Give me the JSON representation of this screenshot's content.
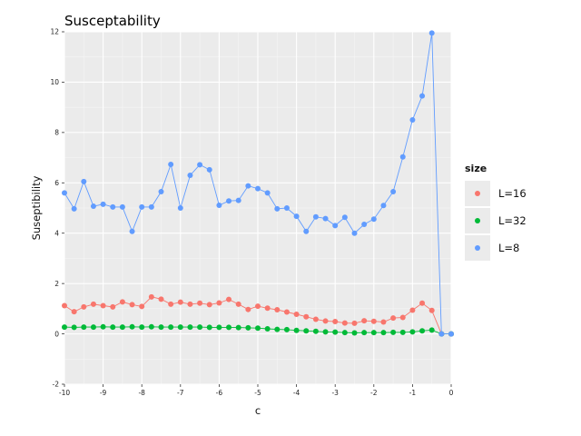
{
  "chart_data": {
    "type": "line",
    "title": "Susceptability",
    "xlabel": "c",
    "ylabel": "Suseptibility",
    "xlim": [
      -10,
      0
    ],
    "ylim": [
      -2,
      12
    ],
    "x_ticks": [
      -10,
      -9,
      -8,
      -7,
      -6,
      -5,
      -4,
      -3,
      -2,
      -1,
      0
    ],
    "y_ticks": [
      -2,
      0,
      2,
      4,
      6,
      8,
      10,
      12
    ],
    "grid": true,
    "legend": {
      "title": "size",
      "placement": "right"
    },
    "series": [
      {
        "name": "L=16",
        "color": "#F8766D",
        "x": [
          -10,
          -9.75,
          -9.5,
          -9.25,
          -9,
          -8.75,
          -8.5,
          -8.25,
          -8,
          -7.75,
          -7.5,
          -7.25,
          -7,
          -6.75,
          -6.5,
          -6.25,
          -6,
          -5.75,
          -5.5,
          -5.25,
          -5,
          -4.75,
          -4.5,
          -4.25,
          -4,
          -3.75,
          -3.5,
          -3.25,
          -3,
          -2.75,
          -2.5,
          -2.25,
          -2,
          -1.75,
          -1.5,
          -1.25,
          -1,
          -0.75,
          -0.5,
          -0.25,
          0
        ],
        "y": [
          1.12,
          0.88,
          1.07,
          1.18,
          1.12,
          1.07,
          1.27,
          1.16,
          1.09,
          1.47,
          1.38,
          1.18,
          1.26,
          1.18,
          1.22,
          1.16,
          1.23,
          1.37,
          1.18,
          0.97,
          1.1,
          1.02,
          0.96,
          0.87,
          0.78,
          0.68,
          0.58,
          0.51,
          0.49,
          0.43,
          0.42,
          0.52,
          0.5,
          0.47,
          0.63,
          0.65,
          0.94,
          1.22,
          0.93,
          0.0,
          0.0
        ]
      },
      {
        "name": "L=32",
        "color": "#00BA38",
        "x": [
          -10,
          -9.75,
          -9.5,
          -9.25,
          -9,
          -8.75,
          -8.5,
          -8.25,
          -8,
          -7.75,
          -7.5,
          -7.25,
          -7,
          -6.75,
          -6.5,
          -6.25,
          -6,
          -5.75,
          -5.5,
          -5.25,
          -5,
          -4.75,
          -4.5,
          -4.25,
          -4,
          -3.75,
          -3.5,
          -3.25,
          -3,
          -2.75,
          -2.5,
          -2.25,
          -2,
          -1.75,
          -1.5,
          -1.25,
          -1,
          -0.75,
          -0.5,
          -0.25,
          0
        ],
        "y": [
          0.27,
          0.26,
          0.27,
          0.27,
          0.28,
          0.27,
          0.27,
          0.28,
          0.27,
          0.28,
          0.27,
          0.27,
          0.27,
          0.27,
          0.27,
          0.26,
          0.26,
          0.26,
          0.25,
          0.24,
          0.23,
          0.2,
          0.18,
          0.17,
          0.14,
          0.12,
          0.1,
          0.08,
          0.07,
          0.05,
          0.04,
          0.05,
          0.05,
          0.05,
          0.06,
          0.06,
          0.08,
          0.12,
          0.15,
          0.0,
          0.0
        ]
      },
      {
        "name": "L=8",
        "color": "#619CFF",
        "x": [
          -10,
          -9.75,
          -9.5,
          -9.25,
          -9,
          -8.75,
          -8.5,
          -8.25,
          -8,
          -7.75,
          -7.5,
          -7.25,
          -7,
          -6.75,
          -6.5,
          -6.25,
          -6,
          -5.75,
          -5.5,
          -5.25,
          -5,
          -4.75,
          -4.5,
          -4.25,
          -4,
          -3.75,
          -3.5,
          -3.25,
          -3,
          -2.75,
          -2.5,
          -2.25,
          -2,
          -1.75,
          -1.5,
          -1.25,
          -1,
          -0.75,
          -0.5,
          -0.25,
          0
        ],
        "y": [
          5.6,
          4.97,
          6.05,
          5.07,
          5.15,
          5.04,
          5.04,
          4.07,
          5.04,
          5.04,
          5.65,
          6.73,
          5.0,
          6.3,
          6.72,
          6.52,
          5.11,
          5.28,
          5.3,
          5.88,
          5.77,
          5.6,
          4.97,
          5.0,
          4.67,
          4.07,
          4.65,
          4.58,
          4.3,
          4.63,
          4.0,
          4.35,
          4.56,
          5.1,
          5.65,
          7.03,
          8.5,
          9.45,
          11.95,
          0.0,
          0.0
        ]
      }
    ]
  }
}
